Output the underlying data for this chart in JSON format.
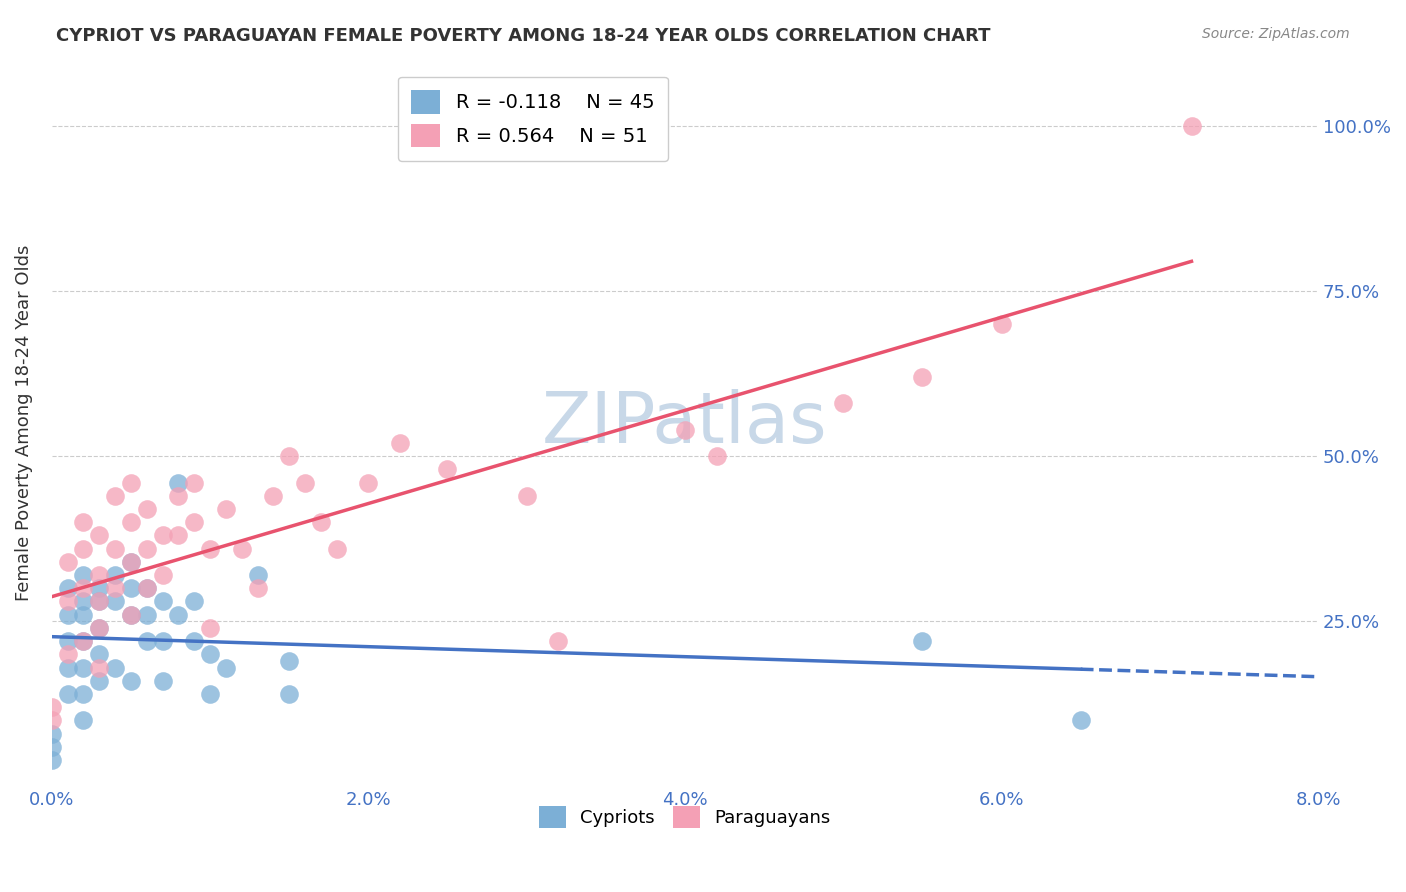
{
  "title": "CYPRIOT VS PARAGUAYAN FEMALE POVERTY AMONG 18-24 YEAR OLDS CORRELATION CHART",
  "source": "Source: ZipAtlas.com",
  "xlabel": "",
  "ylabel": "Female Poverty Among 18-24 Year Olds",
  "xlim": [
    0.0,
    0.08
  ],
  "ylim": [
    0.0,
    1.1
  ],
  "xtick_labels": [
    "0.0%",
    "2.0%",
    "4.0%",
    "6.0%",
    "8.0%"
  ],
  "xtick_vals": [
    0.0,
    0.02,
    0.04,
    0.06,
    0.08
  ],
  "ytick_labels": [
    "25.0%",
    "50.0%",
    "75.0%",
    "100.0%"
  ],
  "ytick_vals": [
    0.25,
    0.5,
    0.75,
    1.0
  ],
  "ytick_label_color": "#4472c4",
  "xtick_label_color": "#4472c4",
  "legend_r_cypriot": "R = -0.118",
  "legend_n_cypriot": "N = 45",
  "legend_r_paraguayan": "R = 0.564",
  "legend_n_paraguayan": "N = 51",
  "color_cypriot": "#7cafd6",
  "color_paraguayan": "#f4a0b5",
  "trendline_cypriot_color": "#4472c4",
  "trendline_paraguayan_color": "#e8536e",
  "watermark_color": "#c8d8e8",
  "background_color": "#ffffff",
  "cypriot_x": [
    0.0,
    0.0,
    0.0,
    0.001,
    0.001,
    0.001,
    0.001,
    0.001,
    0.002,
    0.002,
    0.002,
    0.002,
    0.002,
    0.002,
    0.002,
    0.003,
    0.003,
    0.003,
    0.003,
    0.003,
    0.004,
    0.004,
    0.004,
    0.005,
    0.005,
    0.005,
    0.005,
    0.006,
    0.006,
    0.006,
    0.007,
    0.007,
    0.007,
    0.008,
    0.008,
    0.009,
    0.009,
    0.01,
    0.01,
    0.011,
    0.013,
    0.015,
    0.015,
    0.055,
    0.065
  ],
  "cypriot_y": [
    0.08,
    0.06,
    0.04,
    0.3,
    0.26,
    0.22,
    0.18,
    0.14,
    0.32,
    0.28,
    0.26,
    0.22,
    0.18,
    0.14,
    0.1,
    0.3,
    0.28,
    0.24,
    0.2,
    0.16,
    0.32,
    0.28,
    0.18,
    0.34,
    0.3,
    0.26,
    0.16,
    0.3,
    0.26,
    0.22,
    0.28,
    0.22,
    0.16,
    0.46,
    0.26,
    0.28,
    0.22,
    0.2,
    0.14,
    0.18,
    0.32,
    0.19,
    0.14,
    0.22,
    0.1
  ],
  "paraguayan_x": [
    0.0,
    0.0,
    0.001,
    0.001,
    0.001,
    0.002,
    0.002,
    0.002,
    0.002,
    0.003,
    0.003,
    0.003,
    0.003,
    0.003,
    0.004,
    0.004,
    0.004,
    0.005,
    0.005,
    0.005,
    0.005,
    0.006,
    0.006,
    0.006,
    0.007,
    0.007,
    0.008,
    0.008,
    0.009,
    0.009,
    0.01,
    0.01,
    0.011,
    0.012,
    0.013,
    0.014,
    0.015,
    0.016,
    0.017,
    0.018,
    0.02,
    0.022,
    0.025,
    0.03,
    0.032,
    0.04,
    0.042,
    0.05,
    0.055,
    0.06,
    0.072
  ],
  "paraguayan_y": [
    0.12,
    0.1,
    0.34,
    0.28,
    0.2,
    0.4,
    0.36,
    0.3,
    0.22,
    0.38,
    0.32,
    0.28,
    0.24,
    0.18,
    0.44,
    0.36,
    0.3,
    0.46,
    0.4,
    0.34,
    0.26,
    0.42,
    0.36,
    0.3,
    0.38,
    0.32,
    0.44,
    0.38,
    0.46,
    0.4,
    0.36,
    0.24,
    0.42,
    0.36,
    0.3,
    0.44,
    0.5,
    0.46,
    0.4,
    0.36,
    0.46,
    0.52,
    0.48,
    0.44,
    0.22,
    0.54,
    0.5,
    0.58,
    0.62,
    0.7,
    1.0
  ]
}
